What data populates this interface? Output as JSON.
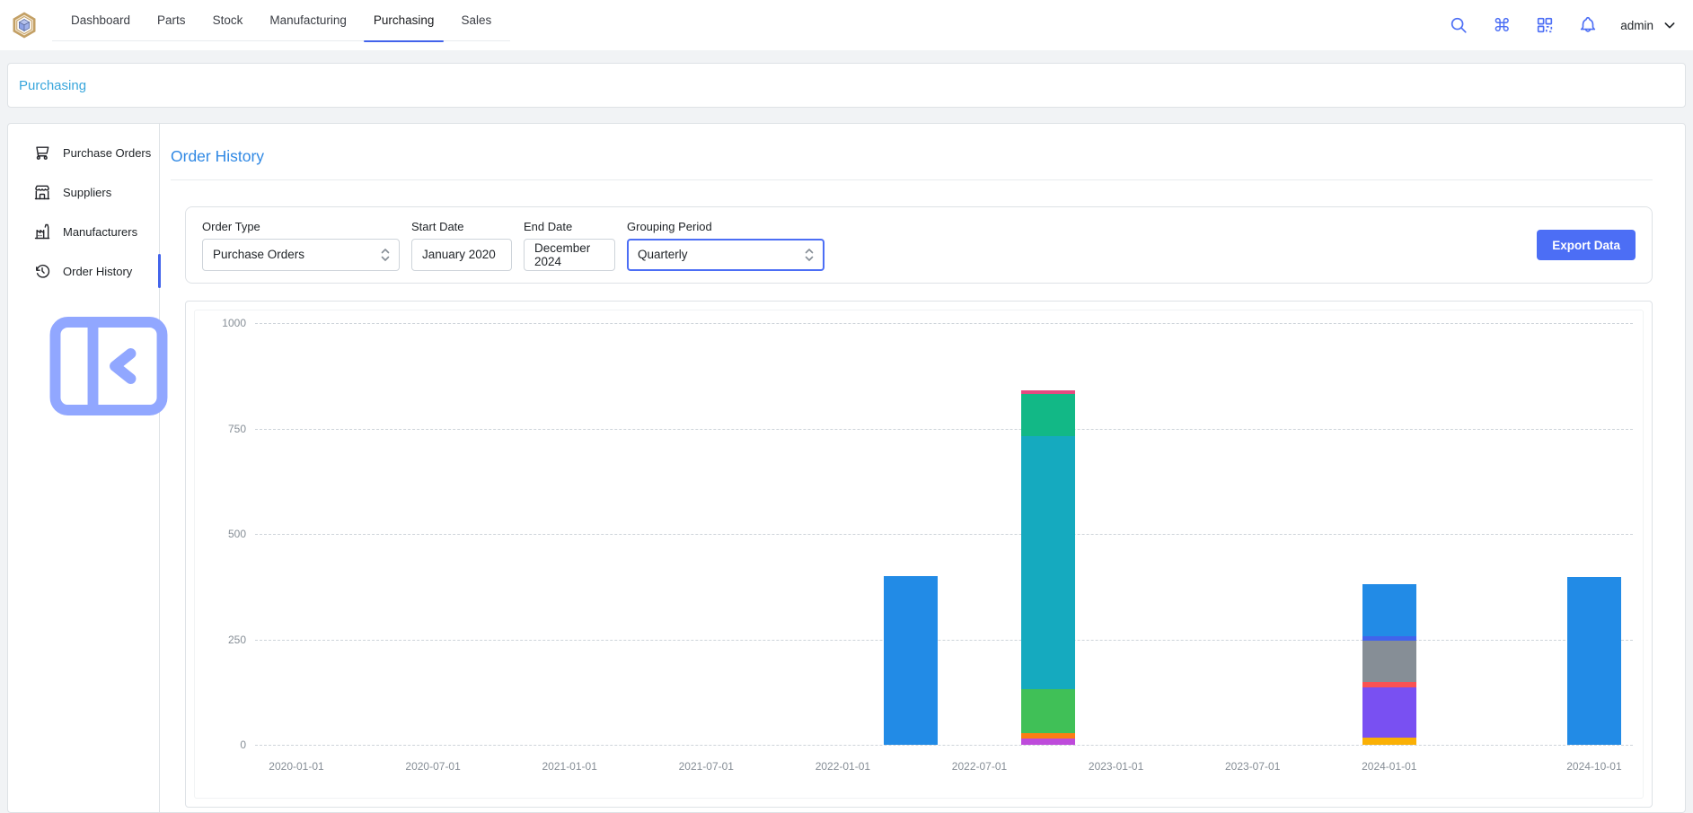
{
  "navbar": {
    "tabs": [
      {
        "label": "Dashboard",
        "active": false
      },
      {
        "label": "Parts",
        "active": false
      },
      {
        "label": "Stock",
        "active": false
      },
      {
        "label": "Manufacturing",
        "active": false
      },
      {
        "label": "Purchasing",
        "active": true
      },
      {
        "label": "Sales",
        "active": false
      }
    ],
    "username": "admin",
    "icons": [
      "search-icon",
      "command-icon",
      "qr-code-icon",
      "bell-icon",
      "chevron-down-icon"
    ]
  },
  "breadcrumb": {
    "label": "Purchasing"
  },
  "sidebar": {
    "items": [
      {
        "label": "Purchase Orders",
        "icon": "shopping-cart-icon",
        "active": false
      },
      {
        "label": "Suppliers",
        "icon": "building-store-icon",
        "active": false
      },
      {
        "label": "Manufacturers",
        "icon": "factory-icon",
        "active": false
      },
      {
        "label": "Order History",
        "icon": "history-clock-icon",
        "active": true
      }
    ],
    "collapse_icon": "sidebar-collapse-icon"
  },
  "page": {
    "title": "Order History"
  },
  "filters": {
    "order_type": {
      "label": "Order Type",
      "value": "Purchase Orders"
    },
    "start_date": {
      "label": "Start Date",
      "value": "January 2020"
    },
    "end_date": {
      "label": "End Date",
      "value": "December 2024"
    },
    "grouping_period": {
      "label": "Grouping Period",
      "value": "Quarterly"
    },
    "export_label": "Export Data"
  },
  "colors": {
    "accent_indigo": "#4c6ef5",
    "active_tab_underline": "#4263eb",
    "breadcrumb_blue": "#38a6dc",
    "title_blue": "#2f88e4",
    "bar_blue": "#228be6"
  },
  "chart_data": {
    "type": "bar",
    "stacked": true,
    "grouping": "Quarterly",
    "title": "",
    "xlabel": "",
    "ylabel": "",
    "ylim": [
      0,
      1000
    ],
    "y_ticks": [
      0,
      250,
      500,
      750,
      1000
    ],
    "grid": "horizontal-dashed",
    "legend_position": "none",
    "x_ticks": [
      "2020-01-01",
      "2020-07-01",
      "2021-01-01",
      "2021-07-01",
      "2022-01-01",
      "2022-07-01",
      "2023-01-01",
      "2023-07-01",
      "2024-01-01",
      "2024-10-01"
    ],
    "bars": [
      {
        "date": "2022-04-01",
        "total": 400,
        "segments": [
          {
            "color": "#228be6",
            "value": 400
          }
        ]
      },
      {
        "date": "2022-10-01",
        "total": 841,
        "segments": [
          {
            "color": "#be4bdb",
            "value": 14
          },
          {
            "color": "#fd7e14",
            "value": 13
          },
          {
            "color": "#40c057",
            "value": 105
          },
          {
            "color": "#15aabf",
            "value": 600
          },
          {
            "color": "#12b886",
            "value": 100
          },
          {
            "color": "#e64980",
            "value": 9
          }
        ]
      },
      {
        "date": "2024-01-01",
        "total": 381,
        "segments": [
          {
            "color": "#fab005",
            "value": 18
          },
          {
            "color": "#7950f2",
            "value": 118
          },
          {
            "color": "#fa5252",
            "value": 13
          },
          {
            "color": "#868e96",
            "value": 97
          },
          {
            "color": "#4263eb",
            "value": 11
          },
          {
            "color": "#228be6",
            "value": 124
          }
        ]
      },
      {
        "date": "2024-10-01",
        "total": 398,
        "segments": [
          {
            "color": "#228be6",
            "value": 398
          }
        ]
      }
    ]
  }
}
